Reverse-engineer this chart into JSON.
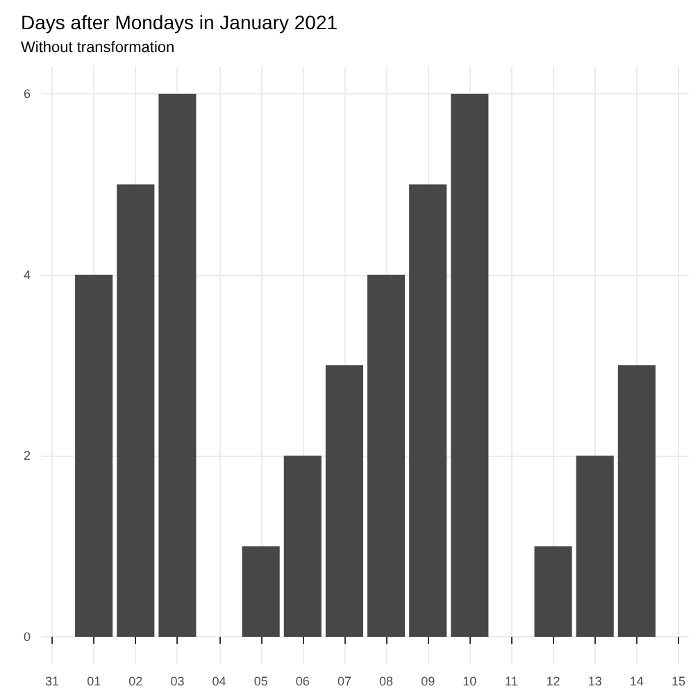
{
  "chart_data": {
    "type": "bar",
    "title": "Days after Mondays in January 2021",
    "subtitle": "Without transformation",
    "x": [
      "2021-01-01",
      "2021-01-02",
      "2021-01-03",
      "2021-01-05",
      "2021-01-06",
      "2021-01-07",
      "2021-01-08",
      "2021-01-09",
      "2021-01-10",
      "2021-01-12",
      "2021-01-13",
      "2021-01-14"
    ],
    "values": [
      4,
      5,
      6,
      1,
      2,
      3,
      4,
      5,
      6,
      1,
      2,
      3
    ],
    "color": "#474747",
    "xlim": [
      "2020-12-30T18:00",
      "2021-01-15T06:00"
    ],
    "xticks": [
      {
        "value": "2020-12-31",
        "label": "31"
      },
      {
        "value": "2021-01-01",
        "label": "01"
      },
      {
        "value": "2021-01-02",
        "label": "02"
      },
      {
        "value": "2021-01-03",
        "label": "03"
      },
      {
        "value": "2021-01-04",
        "label": "04"
      },
      {
        "value": "2021-01-05",
        "label": "05"
      },
      {
        "value": "2021-01-06",
        "label": "06"
      },
      {
        "value": "2021-01-07",
        "label": "07"
      },
      {
        "value": "2021-01-08",
        "label": "08"
      },
      {
        "value": "2021-01-09",
        "label": "09"
      },
      {
        "value": "2021-01-10",
        "label": "10"
      },
      {
        "value": "2021-01-11",
        "label": "11"
      },
      {
        "value": "2021-01-12",
        "label": "12"
      },
      {
        "value": "2021-01-13",
        "label": "13"
      },
      {
        "value": "2021-01-14",
        "label": "14"
      },
      {
        "value": "2021-01-15",
        "label": "15"
      }
    ],
    "ylim": [
      -0.3,
      6.3
    ],
    "yticks": [
      0,
      2,
      4,
      6
    ],
    "grid": true
  }
}
